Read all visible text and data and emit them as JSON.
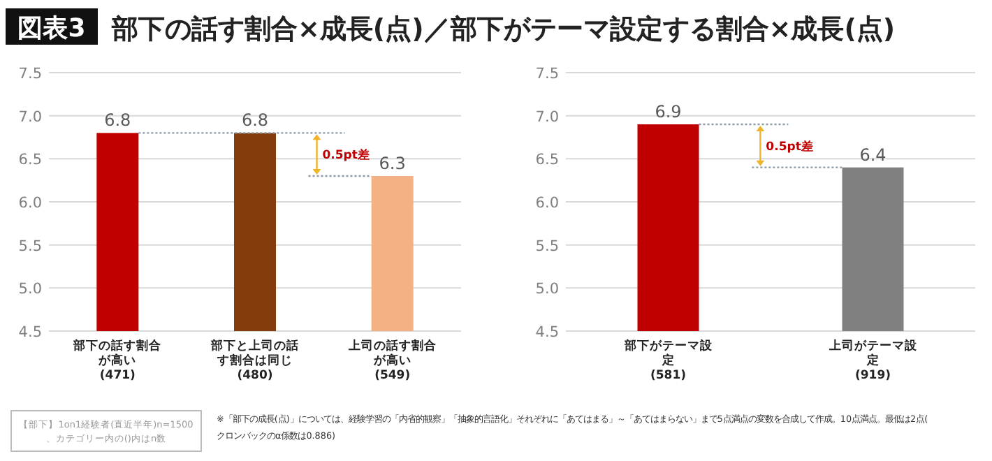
{
  "chart_data": [
    {
      "type": "bar",
      "title": "部下の話す割合×成長(点)／部下がテーマ設定する割合×成長(点)",
      "categories": [
        "部下の話す割合が高い(471)",
        "部下と上司の話す割合は同じ(480)",
        "上司の話す割合が高い(549)"
      ],
      "values": [
        6.8,
        6.8,
        6.3
      ],
      "colors": [
        "#c00000",
        "#843c0c",
        "#f4b183"
      ],
      "ylim": [
        4.5,
        7.5
      ],
      "yticks": [
        4.5,
        {
          "value": 5,
          "label": "5.0"
        },
        5.5,
        {
          "value": 6,
          "label": "6.0"
        },
        6.5,
        {
          "value": 7,
          "label": "7.0"
        },
        7.5
      ],
      "grid": "y",
      "data_labels": true,
      "annotations": [
        "0.5pt差",
        "図表3",
        "【部下】1on1経験者(直近半年)n=1500、カテゴリー内の()内はn数",
        "※「部下の成長(点)」については、経験学習の「内省的観察」「抽象的言語化」それぞれに「あてはまる」～「あてはまらない」まで5点満点の変数を合成して作成。10点満点。最低は2点(クロンバックのα係数は0.886)"
      ]
    },
    {
      "type": "bar",
      "categories": [
        "部下がテーマ設定(581)",
        "上司がテーマ設定(919)"
      ],
      "values": [
        6.9,
        6.4
      ],
      "colors": [
        "#c00000",
        "#808080"
      ],
      "ylim": [
        4.5,
        7.5
      ],
      "yticks": [
        4.5,
        {
          "value": 5,
          "label": "5.0"
        },
        5.5,
        {
          "value": 6,
          "label": "6.0"
        },
        6.5,
        {
          "value": 7,
          "label": "7.0"
        },
        7.5
      ],
      "grid": "y",
      "data_labels": true,
      "annotations": [
        "0.5pt差"
      ]
    }
  ]
}
